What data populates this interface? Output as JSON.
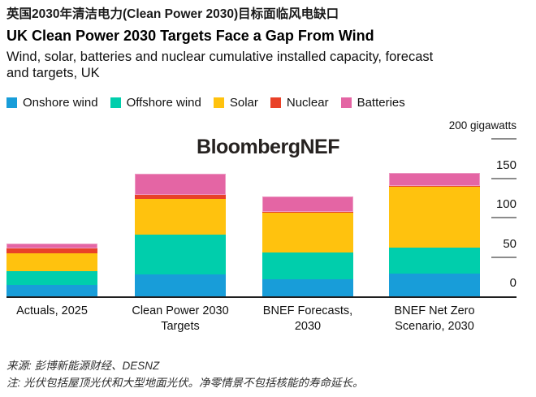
{
  "header": {
    "title_zh": "英国2030年清洁电力(Clean Power 2030)目标面临风电缺口",
    "title_en": "UK Clean Power 2030 Targets Face a Gap From Wind",
    "subtitle": "Wind, solar, batteries and nuclear cumulative installed capacity, forecast and targets, UK"
  },
  "watermark": "BloombergNEF",
  "chart_data": {
    "type": "bar",
    "stacked": true,
    "unit": "gigawatts",
    "categories": [
      "Actuals, 2025",
      "Clean Power 2030 Targets",
      "BNEF Forecasts, 2030",
      "BNEF Net Zero Scenario, 2030"
    ],
    "category_lines": [
      [
        "Actuals, 2025"
      ],
      [
        "Clean Power 2030",
        "Targets"
      ],
      [
        "BNEF Forecasts,",
        "2030"
      ],
      [
        "BNEF Net Zero",
        "Scenario, 2030"
      ]
    ],
    "series": [
      {
        "name": "Onshore wind",
        "color": "#189DD9",
        "values": [
          14,
          28,
          22,
          29
        ]
      },
      {
        "name": "Offshore wind",
        "color": "#00CEAC",
        "values": [
          18,
          50,
          34,
          33
        ]
      },
      {
        "name": "Solar",
        "color": "#FFC20E",
        "values": [
          23,
          46,
          50,
          77
        ]
      },
      {
        "name": "Nuclear",
        "color": "#E94128",
        "values": [
          6,
          5,
          1.5,
          1.5
        ]
      },
      {
        "name": "Batteries",
        "color": "#E465A4",
        "values": [
          6.5,
          27,
          19,
          16
        ]
      }
    ],
    "ylim": [
      0,
      200
    ],
    "axis": {
      "unit_label": "200 gigawatts",
      "tick_labels": [
        150,
        100,
        50,
        0
      ],
      "dash_levels": [
        200,
        150,
        100,
        50
      ],
      "side": "right"
    },
    "legend_position": "top",
    "grid": false
  },
  "footer": {
    "source": "来源: 彭博新能源财经、DESNZ",
    "note": "注: 光伏包括屋顶光伏和大型地面光伏。净零情景不包括核能的寿命延长。"
  }
}
